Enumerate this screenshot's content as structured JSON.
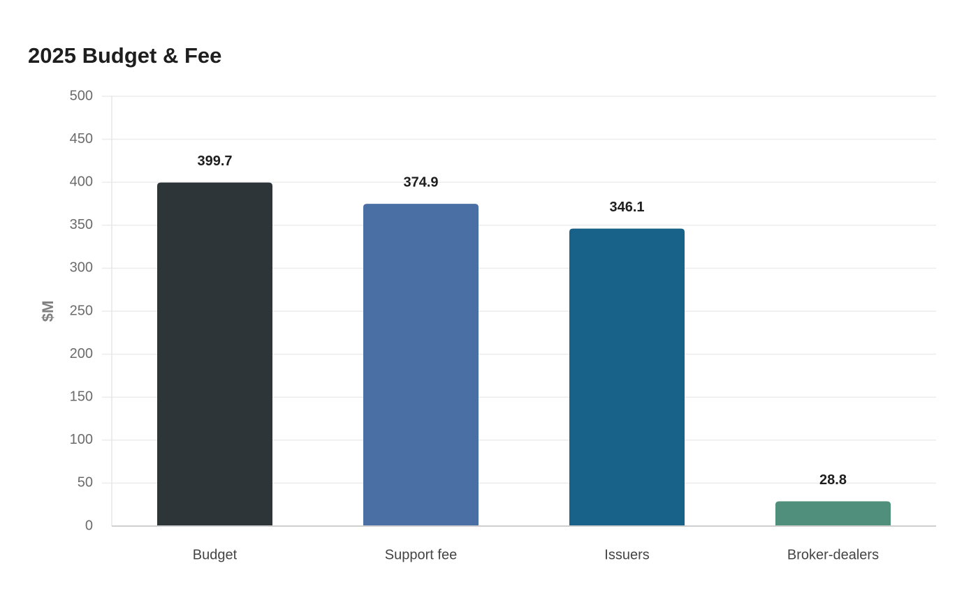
{
  "chart_data": {
    "type": "bar",
    "title": "2025 Budget & Fee",
    "xlabel": "",
    "ylabel": "$M",
    "categories": [
      "Budget",
      "Support fee",
      "Issuers",
      "Broker-dealers"
    ],
    "values": [
      399.7,
      374.9,
      346.1,
      28.8
    ],
    "value_labels": [
      "399.7",
      "374.9",
      "346.1",
      "28.8"
    ],
    "colors": [
      "#2e3538",
      "#4a6fa5",
      "#186188",
      "#4f8f7b"
    ],
    "ylim": [
      0,
      500
    ],
    "yticks": [
      0,
      50,
      100,
      150,
      200,
      250,
      300,
      350,
      400,
      450,
      500
    ],
    "grid": true,
    "legend": "none"
  }
}
